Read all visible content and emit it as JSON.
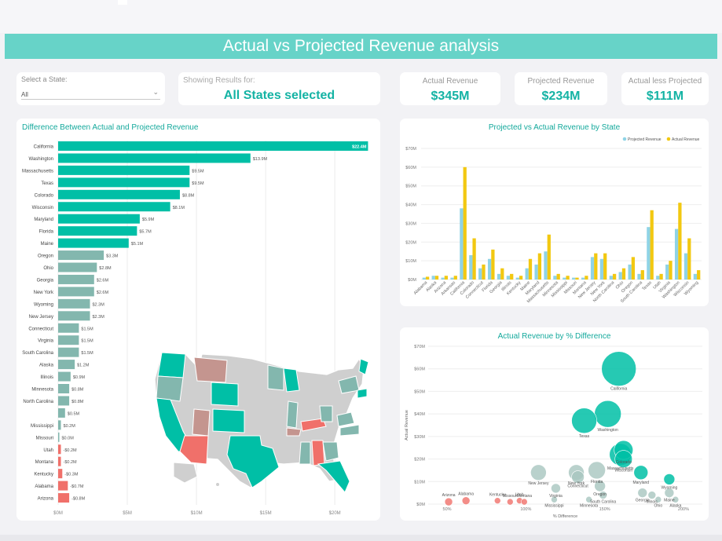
{
  "title": "Actual vs Projected Revenue analysis",
  "slicer": {
    "label": "Select a State:",
    "value": "All"
  },
  "showing": {
    "label": "Showing Results for:",
    "value": "All States selected"
  },
  "kpis": [
    {
      "label": "Actual Revenue",
      "value": "$345M"
    },
    {
      "label": "Projected Revenue",
      "value": "$234M"
    },
    {
      "label": "Actual less Projected",
      "value": "$111M"
    }
  ],
  "colors": {
    "teal": "#00bfa6",
    "grey_teal": "#83b7ae",
    "light_blue": "#8fd3e6",
    "yellow": "#f2c811",
    "red": "#f0706a"
  },
  "chart_data": [
    {
      "type": "bar",
      "orientation": "horizontal",
      "title": "Difference Between Actual and Projected Revenue",
      "categories": [
        "California",
        "Washington",
        "Massachusetts",
        "Texas",
        "Colorado",
        "Wisconsin",
        "Maryland",
        "Florida",
        "Maine",
        "Oregon",
        "Ohio",
        "Georgia",
        "New York",
        "Wyoming",
        "New Jersey",
        "Connecticut",
        "Virginia",
        "South Carolina",
        "Alaska",
        "Illinois",
        "Minnesota",
        "North Carolina",
        "",
        "Mississippi",
        "Missouri",
        "Utah",
        "Montana",
        "Kentucky",
        "Alabama",
        "Arizona"
      ],
      "values": [
        22.4,
        13.9,
        9.5,
        9.5,
        8.8,
        8.1,
        5.9,
        5.7,
        5.1,
        3.3,
        2.8,
        2.6,
        2.6,
        2.3,
        2.3,
        1.5,
        1.5,
        1.5,
        1.2,
        0.9,
        0.8,
        0.8,
        0.5,
        0.2,
        0.0,
        -0.2,
        -0.2,
        -0.3,
        -0.7,
        -0.8
      ],
      "data_labels": [
        "$22.4M",
        "$13.9M",
        "$9.5M",
        "$9.5M",
        "$8.8M",
        "$8.1M",
        "$5.9M",
        "$5.7M",
        "$5.1M",
        "$3.3M",
        "$2.8M",
        "$2.6M",
        "$2.6M",
        "$2.3M",
        "$2.3M",
        "$1.5M",
        "$1.5M",
        "$1.5M",
        "$1.2M",
        "$0.9M",
        "$0.8M",
        "$0.8M",
        "$0.5M",
        "$0.2M",
        "$0.0M",
        "-$0.2M",
        "-$0.2M",
        "-$0.3M",
        "-$0.7M",
        "-$0.8M"
      ],
      "x_ticks": [
        "$0M",
        "$5M",
        "$10M",
        "$15M",
        "$20M"
      ],
      "xlim": [
        0,
        23
      ]
    },
    {
      "type": "bar",
      "title": "Projected vs Actual Revenue by State",
      "categories": [
        "Alabama",
        "Alaska",
        "Arizona",
        "Arkansas",
        "California",
        "Colorado",
        "Connecticut",
        "Florida",
        "Georgia",
        "Illinois",
        "Kentucky",
        "Maine",
        "Maryland",
        "Massachusetts",
        "Minnesota",
        "Mississippi",
        "Missouri",
        "Montana",
        "New Jersey",
        "New York",
        "North Carolina",
        "Ohio",
        "Oregon",
        "South Carolina",
        "Texas",
        "Utah",
        "Virginia",
        "Washington",
        "Wisconsin",
        "Wyoming"
      ],
      "series": [
        {
          "name": "Projected Revenue",
          "values": [
            1,
            2,
            1,
            1,
            38,
            13,
            6,
            11,
            3,
            2,
            1,
            6,
            8,
            15,
            2,
            1,
            1,
            1,
            12,
            11,
            2,
            4,
            8,
            3,
            28,
            2,
            8,
            27,
            14,
            3
          ]
        },
        {
          "name": "Actual Revenue",
          "values": [
            1.5,
            2,
            2,
            2,
            60,
            22,
            8,
            16,
            6,
            3,
            2,
            11,
            14,
            24,
            3,
            2,
            1,
            2,
            14,
            14,
            3,
            6,
            12,
            5,
            37,
            3,
            10,
            41,
            22,
            5
          ]
        }
      ],
      "y_ticks": [
        "$0M",
        "$10M",
        "$20M",
        "$30M",
        "$40M",
        "$50M",
        "$60M",
        "$70M"
      ],
      "ylim": [
        0,
        70
      ],
      "legend": "top-right"
    },
    {
      "type": "scatter",
      "title": "Actual Revenue by % Difference",
      "xlabel": "% Difference",
      "ylabel": "Actual Revenue",
      "x_ticks": [
        "50%",
        "100%",
        "150%",
        "200%"
      ],
      "y_ticks": [
        "$0M",
        "$10M",
        "$20M",
        "$30M",
        "$40M",
        "$50M",
        "$60M",
        "$70M"
      ],
      "xlim": [
        38,
        212
      ],
      "ylim": [
        0,
        70
      ],
      "points": [
        {
          "label": "California",
          "x": 159,
          "y": 60,
          "size": 22,
          "color": "teal"
        },
        {
          "label": "Washington",
          "x": 152,
          "y": 40,
          "size": 17,
          "color": "teal"
        },
        {
          "label": "Texas",
          "x": 137,
          "y": 37,
          "size": 16,
          "color": "teal"
        },
        {
          "label": "Colorado",
          "x": 162,
          "y": 24,
          "size": 12,
          "color": "teal"
        },
        {
          "label": "Massachusetts",
          "x": 160,
          "y": 22,
          "size": 14,
          "color": "teal"
        },
        {
          "label": "Wisconsin",
          "x": 162,
          "y": 20,
          "size": 11,
          "color": "teal"
        },
        {
          "label": "Florida",
          "x": 145,
          "y": 15,
          "size": 11,
          "color": "grey_teal"
        },
        {
          "label": "Maryland",
          "x": 173,
          "y": 14,
          "size": 9,
          "color": "teal"
        },
        {
          "label": "New Jersey",
          "x": 108,
          "y": 14,
          "size": 10,
          "color": "grey_teal"
        },
        {
          "label": "Connecticut",
          "x": 133,
          "y": 12,
          "size": 8,
          "color": "grey_teal"
        },
        {
          "label": "New York",
          "x": 132,
          "y": 14,
          "size": 10,
          "color": "grey_teal"
        },
        {
          "label": "Wyoming",
          "x": 191,
          "y": 11,
          "size": 7,
          "color": "teal"
        },
        {
          "label": "Oregon",
          "x": 147,
          "y": 8,
          "size": 7,
          "color": "grey_teal"
        },
        {
          "label": "Virginia",
          "x": 119,
          "y": 7,
          "size": 6,
          "color": "grey_teal"
        },
        {
          "label": "Maine",
          "x": 191,
          "y": 5,
          "size": 6,
          "color": "grey_teal"
        },
        {
          "label": "Georgia",
          "x": 174,
          "y": 5,
          "size": 6,
          "color": "grey_teal"
        },
        {
          "label": "South Carolina",
          "x": 149,
          "y": 4,
          "size": 5,
          "color": "grey_teal"
        },
        {
          "label": "Illinois",
          "x": 180,
          "y": 4,
          "size": 5,
          "color": "grey_teal"
        },
        {
          "label": "Mississippi",
          "x": 118,
          "y": 2,
          "size": 4,
          "color": "grey_teal"
        },
        {
          "label": "Minnesota",
          "x": 140,
          "y": 2,
          "size": 4,
          "color": "grey_teal"
        },
        {
          "label": "Ohio",
          "x": 184,
          "y": 2,
          "size": 4,
          "color": "grey_teal"
        },
        {
          "label": "Alaska",
          "x": 195,
          "y": 2,
          "size": 4,
          "color": "grey_teal"
        },
        {
          "label": "Utah",
          "x": 96,
          "y": 1.5,
          "size": 4,
          "color": "red"
        },
        {
          "label": "Missouri",
          "x": 90,
          "y": 1,
          "size": 4,
          "color": "red"
        },
        {
          "label": "Kentucky",
          "x": 82,
          "y": 1.5,
          "size": 4,
          "color": "red"
        },
        {
          "label": "Montana",
          "x": 99,
          "y": 1,
          "size": 4,
          "color": "red"
        },
        {
          "label": "Arizona",
          "x": 51,
          "y": 1,
          "size": 5,
          "color": "red"
        },
        {
          "label": "Alabama",
          "x": 62,
          "y": 1.5,
          "size": 5,
          "color": "red"
        }
      ]
    }
  ]
}
